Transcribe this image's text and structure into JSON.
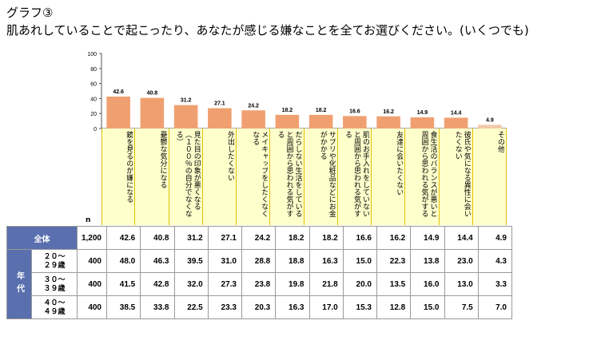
{
  "title_line1": "グラフ③",
  "title_line2": "肌あれしていることで起こったり、あなたが感じる嫌なことを全てお選びください。(いくつでも)",
  "chart_data": {
    "type": "bar",
    "categories": [
      "鏡を見るのが嫌になる",
      "憂鬱な気分になる",
      "見た目の印象が悪くなる（１００％の自分でなくなる）",
      "外出したくない",
      "メイキャップをしたくなくなる",
      "だらしない生活をしていると周囲から思われる気がする",
      "サプリや化粧品などにお金がかかる",
      "肌のお手入れをしていないと周囲から思われる気がする",
      "友達に会いたくない",
      "食生活のバランスが悪いと周囲から思われる気がする",
      "彼氏や気になる異性に会いたくない",
      "その他"
    ],
    "values": [
      42.6,
      40.8,
      31.2,
      27.1,
      24.2,
      18.2,
      18.2,
      16.6,
      16.2,
      14.9,
      14.4,
      4.9
    ],
    "ylim": [
      0,
      100
    ],
    "yticks": [
      "0",
      "20",
      "40",
      "60",
      "80",
      "100"
    ],
    "bar_color": "#f0a070",
    "other_bar_color": "#f3c9a6",
    "n_label": "n"
  },
  "table": {
    "group_label": "年代",
    "rows": [
      {
        "label": "全体",
        "n": "1,200",
        "values": [
          "42.6",
          "40.8",
          "31.2",
          "27.1",
          "24.2",
          "18.2",
          "18.2",
          "16.6",
          "16.2",
          "14.9",
          "14.4",
          "4.9"
        ]
      },
      {
        "label": "２０～\n２９歳",
        "n": "400",
        "values": [
          "48.0",
          "46.3",
          "39.5",
          "31.0",
          "28.8",
          "18.8",
          "16.3",
          "15.0",
          "22.3",
          "13.8",
          "23.0",
          "4.3"
        ]
      },
      {
        "label": "３０～\n３９歳",
        "n": "400",
        "values": [
          "41.5",
          "42.8",
          "32.0",
          "27.3",
          "23.8",
          "19.8",
          "21.8",
          "20.0",
          "13.5",
          "16.0",
          "13.0",
          "3.3"
        ]
      },
      {
        "label": "４０～\n４９歳",
        "n": "400",
        "values": [
          "38.5",
          "33.8",
          "22.5",
          "23.3",
          "20.3",
          "16.3",
          "17.0",
          "15.3",
          "12.8",
          "15.0",
          "7.5",
          "7.0"
        ]
      }
    ]
  }
}
